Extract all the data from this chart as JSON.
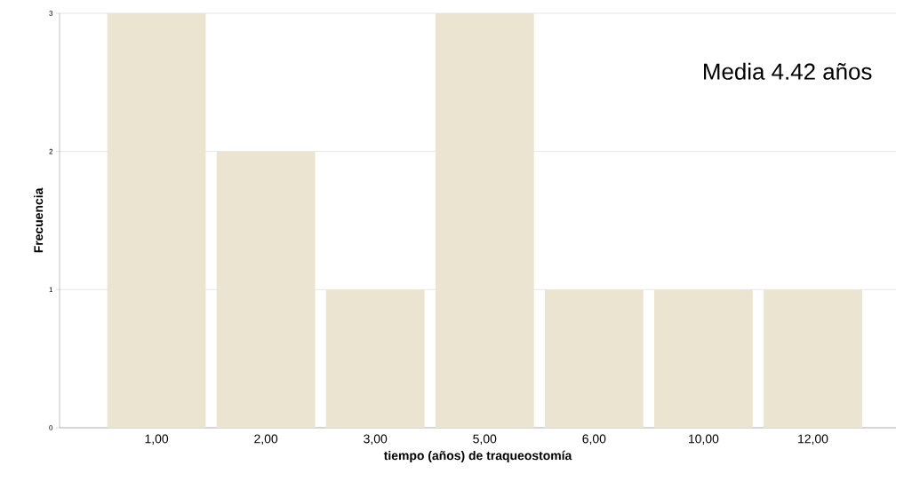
{
  "chart_data": {
    "type": "bar",
    "xlabel": "tiempo (años) de traqueostomía",
    "ylabel": "Frecuencia",
    "categories": [
      "1,00",
      "2,00",
      "3,00",
      "5,00",
      "6,00",
      "10,00",
      "12,00"
    ],
    "values": [
      3,
      2,
      1,
      3,
      1,
      1,
      1
    ],
    "color": "#ebe4d0",
    "ylim": [
      0,
      3
    ],
    "yticks": [
      0,
      1,
      2,
      3
    ],
    "grid": "y",
    "annotations": [
      "Media 4.42 años"
    ]
  }
}
